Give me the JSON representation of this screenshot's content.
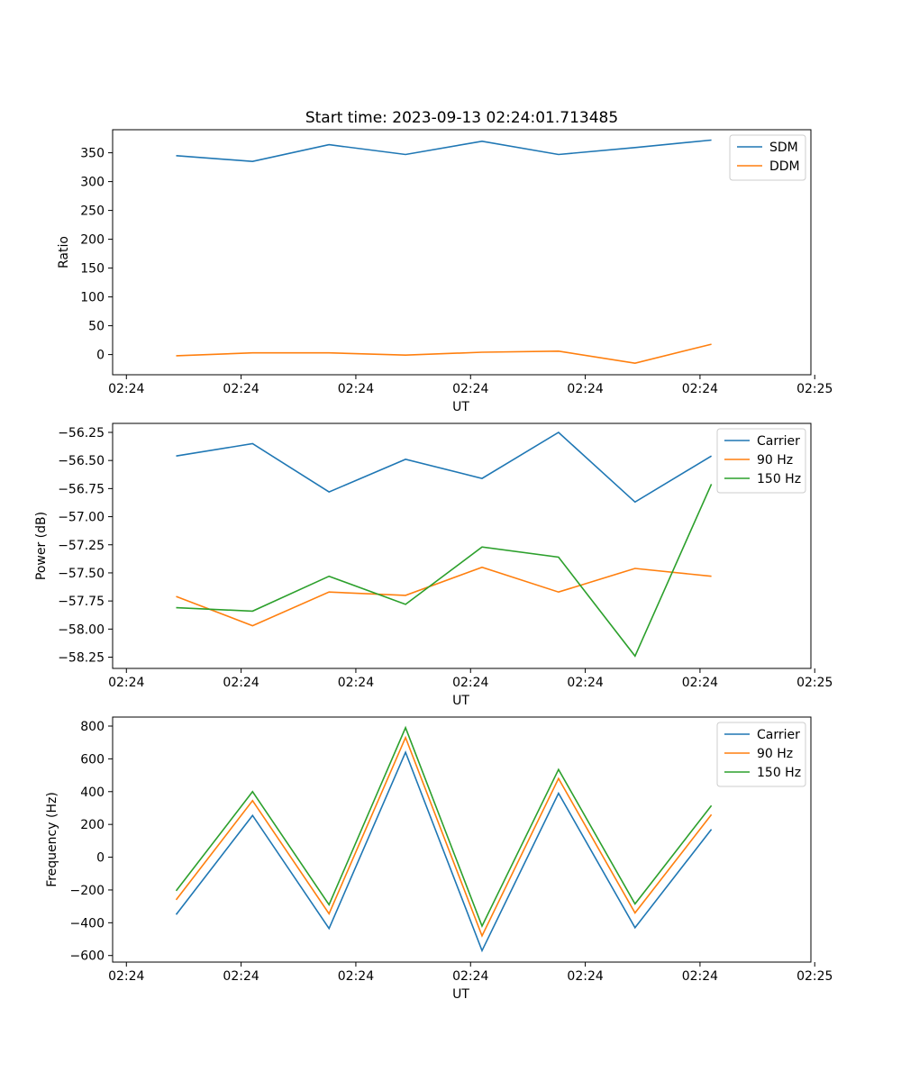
{
  "chart_data": [
    {
      "type": "line",
      "title": "Start time: 2023-09-13 02:24:01.713485",
      "xlabel": "UT",
      "ylabel": "Ratio",
      "xticks": [
        "02:24",
        "02:24",
        "02:24",
        "02:24",
        "02:24",
        "02:24",
        "02:24"
      ],
      "xticks_right": "02:25",
      "yticks": [
        0,
        50,
        100,
        150,
        200,
        250,
        300,
        350
      ],
      "ylim": [
        -35,
        390
      ],
      "x": [
        1,
        2,
        3,
        4,
        5,
        6,
        7,
        8
      ],
      "xlim": [
        0.17,
        9.3
      ],
      "series": [
        {
          "name": "SDM",
          "color": "#1f77b4",
          "values": [
            345,
            335,
            364,
            347,
            370,
            347,
            359,
            372
          ]
        },
        {
          "name": "DDM",
          "color": "#ff7f0e",
          "values": [
            -2,
            3,
            3,
            -1,
            4,
            6,
            -15,
            18
          ]
        }
      ],
      "legend": "top-right",
      "grid": false
    },
    {
      "type": "line",
      "title": "",
      "xlabel": "UT",
      "ylabel": "Power (dB)",
      "xticks": [
        "02:24",
        "02:24",
        "02:24",
        "02:24",
        "02:24",
        "02:24",
        "02:24"
      ],
      "xticks_right": "02:25",
      "yticks": [
        -58.25,
        -58.0,
        -57.75,
        -57.5,
        -57.25,
        -57.0,
        -56.75,
        -56.5,
        -56.25
      ],
      "ytick_labels": [
        "−58.25",
        "−58.00",
        "−57.75",
        "−57.50",
        "−57.25",
        "−57.00",
        "−56.75",
        "−56.50",
        "−56.25"
      ],
      "ylim": [
        -58.35,
        -56.17
      ],
      "x": [
        1,
        2,
        3,
        4,
        5,
        6,
        7,
        8
      ],
      "xlim": [
        0.17,
        9.3
      ],
      "series": [
        {
          "name": "Carrier",
          "color": "#1f77b4",
          "values": [
            -56.46,
            -56.35,
            -56.78,
            -56.49,
            -56.66,
            -56.25,
            -56.87,
            -56.46
          ]
        },
        {
          "name": "90 Hz",
          "color": "#ff7f0e",
          "values": [
            -57.71,
            -57.97,
            -57.67,
            -57.7,
            -57.45,
            -57.67,
            -57.46,
            -57.53
          ]
        },
        {
          "name": "150 Hz",
          "color": "#2ca02c",
          "values": [
            -57.81,
            -57.84,
            -57.53,
            -57.78,
            -57.27,
            -57.36,
            -58.24,
            -56.71
          ]
        }
      ],
      "legend": "top-right",
      "grid": false
    },
    {
      "type": "line",
      "title": "",
      "xlabel": "UT",
      "ylabel": "Frequency (Hz)",
      "xticks": [
        "02:24",
        "02:24",
        "02:24",
        "02:24",
        "02:24",
        "02:24",
        "02:24"
      ],
      "xticks_right": "02:25",
      "yticks": [
        -600,
        -400,
        -200,
        0,
        200,
        400,
        600,
        800
      ],
      "ytick_labels": [
        "−600",
        "−400",
        "−200",
        "0",
        "200",
        "400",
        "600",
        "800"
      ],
      "ylim": [
        -640,
        855
      ],
      "x": [
        1,
        2,
        3,
        4,
        5,
        6,
        7,
        8
      ],
      "xlim": [
        0.17,
        9.3
      ],
      "series": [
        {
          "name": "Carrier",
          "color": "#1f77b4",
          "values": [
            -350,
            255,
            -435,
            640,
            -570,
            390,
            -430,
            170
          ]
        },
        {
          "name": "90 Hz",
          "color": "#ff7f0e",
          "values": [
            -260,
            345,
            -345,
            730,
            -480,
            480,
            -340,
            260
          ]
        },
        {
          "name": "150 Hz",
          "color": "#2ca02c",
          "values": [
            -205,
            400,
            -290,
            790,
            -420,
            535,
            -285,
            315
          ]
        }
      ],
      "legend": "top-right",
      "grid": false
    }
  ]
}
